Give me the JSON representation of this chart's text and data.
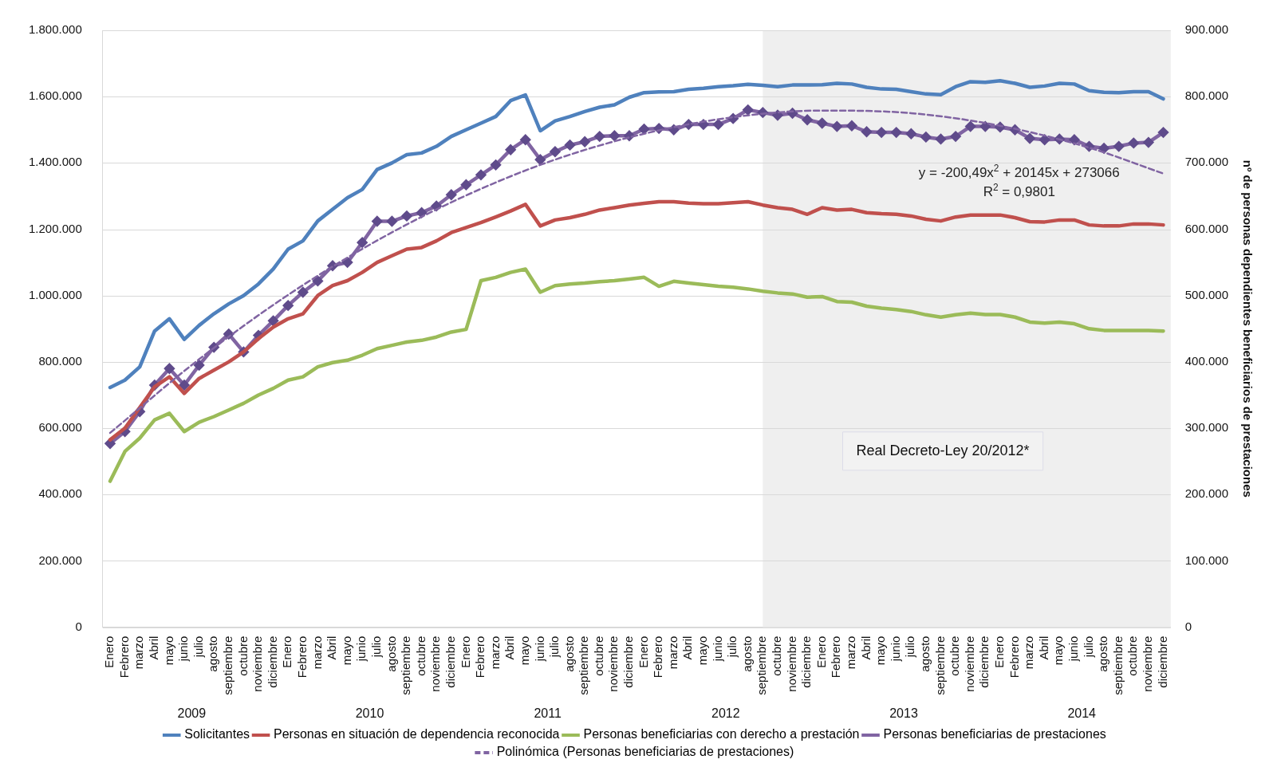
{
  "chart_data": {
    "type": "line",
    "x": [
      "2009-01",
      "2009-02",
      "2009-03",
      "2009-04",
      "2009-05",
      "2009-06",
      "2009-07",
      "2009-08",
      "2009-09",
      "2009-10",
      "2009-11",
      "2009-12",
      "2010-01",
      "2010-02",
      "2010-03",
      "2010-04",
      "2010-05",
      "2010-06",
      "2010-07",
      "2010-08",
      "2010-09",
      "2010-10",
      "2010-11",
      "2010-12",
      "2011-01",
      "2011-02",
      "2011-03",
      "2011-04",
      "2011-05",
      "2011-06",
      "2011-07",
      "2011-08",
      "2011-09",
      "2011-10",
      "2011-11",
      "2011-12",
      "2012-01",
      "2012-02",
      "2012-03",
      "2012-04",
      "2012-05",
      "2012-06",
      "2012-07",
      "2012-08",
      "2012-09",
      "2012-10",
      "2012-11",
      "2012-12",
      "2013-01",
      "2013-02",
      "2013-03",
      "2013-04",
      "2013-05",
      "2013-06",
      "2013-07",
      "2013-08",
      "2013-09",
      "2013-10",
      "2013-11",
      "2013-12",
      "2014-01",
      "2014-02",
      "2014-03",
      "2014-04",
      "2014-05",
      "2014-06",
      "2014-07",
      "2014-08",
      "2014-09",
      "2014-10",
      "2014-11",
      "2014-12"
    ],
    "xlim": [
      "2008-12-16",
      "2014-12-16"
    ],
    "xticks": [
      {
        "value": "2009-01",
        "label": "Enero"
      },
      {
        "value": "2009-02",
        "label": "Febrero"
      },
      {
        "value": "2009-03",
        "label": "marzo"
      },
      {
        "value": "2009-04",
        "label": "Abril"
      },
      {
        "value": "2009-05",
        "label": "mayo"
      },
      {
        "value": "2009-06",
        "label": "junio"
      },
      {
        "value": "2009-07",
        "label": "julio"
      },
      {
        "value": "2009-08",
        "label": "agosto"
      },
      {
        "value": "2009-09",
        "label": "septiembre"
      },
      {
        "value": "2009-10",
        "label": "octubre"
      },
      {
        "value": "2009-11",
        "label": "noviembre"
      },
      {
        "value": "2009-12",
        "label": "diciembre"
      },
      {
        "value": "2010-01",
        "label": "Enero"
      },
      {
        "value": "2010-02",
        "label": "Febrero"
      },
      {
        "value": "2010-03",
        "label": "marzo"
      },
      {
        "value": "2010-04",
        "label": "Abril"
      },
      {
        "value": "2010-05",
        "label": "mayo"
      },
      {
        "value": "2010-06",
        "label": "junio"
      },
      {
        "value": "2010-07",
        "label": "julio"
      },
      {
        "value": "2010-08",
        "label": "agosto"
      },
      {
        "value": "2010-09",
        "label": "septiembre"
      },
      {
        "value": "2010-10",
        "label": "octubre"
      },
      {
        "value": "2010-11",
        "label": "noviembre"
      },
      {
        "value": "2010-12",
        "label": "diciembre"
      },
      {
        "value": "2011-01",
        "label": "Enero"
      },
      {
        "value": "2011-02",
        "label": "Febrero"
      },
      {
        "value": "2011-03",
        "label": "marzo"
      },
      {
        "value": "2011-04",
        "label": "Abril"
      },
      {
        "value": "2011-05",
        "label": "mayo"
      },
      {
        "value": "2011-06",
        "label": "junio"
      },
      {
        "value": "2011-07",
        "label": "julio"
      },
      {
        "value": "2011-08",
        "label": "agosto"
      },
      {
        "value": "2011-09",
        "label": "septiembre"
      },
      {
        "value": "2011-10",
        "label": "octubre"
      },
      {
        "value": "2011-11",
        "label": "noviembre"
      },
      {
        "value": "2011-12",
        "label": "diciembre"
      },
      {
        "value": "2012-01",
        "label": "Enero"
      },
      {
        "value": "2012-02",
        "label": "Febrero"
      },
      {
        "value": "2012-03",
        "label": "marzo"
      },
      {
        "value": "2012-04",
        "label": "Abril"
      },
      {
        "value": "2012-05",
        "label": "mayo"
      },
      {
        "value": "2012-06",
        "label": "junio"
      },
      {
        "value": "2012-07",
        "label": "julio"
      },
      {
        "value": "2012-08",
        "label": "agosto"
      },
      {
        "value": "2012-09",
        "label": "septiembre"
      },
      {
        "value": "2012-10",
        "label": "octubre"
      },
      {
        "value": "2012-11",
        "label": "noviembre"
      },
      {
        "value": "2012-12",
        "label": "diciembre"
      },
      {
        "value": "2013-01",
        "label": "Enero"
      },
      {
        "value": "2013-02",
        "label": "Febrero"
      },
      {
        "value": "2013-03",
        "label": "marzo"
      },
      {
        "value": "2013-04",
        "label": "Abril"
      },
      {
        "value": "2013-05",
        "label": "mayo"
      },
      {
        "value": "2013-06",
        "label": "junio"
      },
      {
        "value": "2013-07",
        "label": "julio"
      },
      {
        "value": "2013-08",
        "label": "agosto"
      },
      {
        "value": "2013-09",
        "label": "septiembre"
      },
      {
        "value": "2013-10",
        "label": "octubre"
      },
      {
        "value": "2013-11",
        "label": "noviembre"
      },
      {
        "value": "2013-12",
        "label": "diciembre"
      },
      {
        "value": "2014-01",
        "label": "Enero"
      },
      {
        "value": "2014-02",
        "label": "Febrero"
      },
      {
        "value": "2014-03",
        "label": "marzo"
      },
      {
        "value": "2014-04",
        "label": "Abril"
      },
      {
        "value": "2014-05",
        "label": "mayo"
      },
      {
        "value": "2014-06",
        "label": "junio"
      },
      {
        "value": "2014-07",
        "label": "julio"
      },
      {
        "value": "2014-08",
        "label": "agosto"
      },
      {
        "value": "2014-09",
        "label": "septiembre"
      },
      {
        "value": "2014-10",
        "label": "octubre"
      },
      {
        "value": "2014-11",
        "label": "noviembre"
      },
      {
        "value": "2014-12",
        "label": "diciembre"
      }
    ],
    "x2lim": [
      "2008-12-16",
      "2014-12-16"
    ],
    "x2ticks": [
      {
        "value": "2009-06-16",
        "label": "2009"
      },
      {
        "value": "2010-06-16",
        "label": "2010"
      },
      {
        "value": "2011-06-16",
        "label": "2011"
      },
      {
        "value": "2012-06-16",
        "label": "2012"
      },
      {
        "value": "2013-06-16",
        "label": "2013"
      },
      {
        "value": "2014-06-16",
        "label": "2014"
      }
    ],
    "ylim": [
      0,
      1800000
    ],
    "yticks": [
      {
        "value": 0,
        "label": "0"
      },
      {
        "value": 200000,
        "label": "200.000"
      },
      {
        "value": 400000,
        "label": "400.000"
      },
      {
        "value": 600000,
        "label": "600.000"
      },
      {
        "value": 800000,
        "label": "800.000"
      },
      {
        "value": 1000000,
        "label": "1.000.000"
      },
      {
        "value": 1200000,
        "label": "1.200.000"
      },
      {
        "value": 1400000,
        "label": "1.400.000"
      },
      {
        "value": 1600000,
        "label": "1.600.000"
      },
      {
        "value": 1800000,
        "label": "1.800.000"
      }
    ],
    "y2lim": [
      0,
      900000
    ],
    "y2ticks": [
      {
        "value": 0,
        "label": "0"
      },
      {
        "value": 100000,
        "label": "100.000"
      },
      {
        "value": 200000,
        "label": "200.000"
      },
      {
        "value": 300000,
        "label": "300.000"
      },
      {
        "value": 400000,
        "label": "400.000"
      },
      {
        "value": 500000,
        "label": "500.000"
      },
      {
        "value": 600000,
        "label": "600.000"
      },
      {
        "value": 700000,
        "label": "700.000"
      },
      {
        "value": 800000,
        "label": "800.000"
      },
      {
        "value": 900000,
        "label": "900.000"
      }
    ],
    "y2label": "nº de personas dependientes beneficiarios de prestaciones",
    "grid": "y",
    "legend": "bottom",
    "series": [
      {
        "name": "Solicitantes",
        "color": "#4f81bd",
        "values": [
          723000,
          745000,
          785000,
          893000,
          930000,
          868000,
          910000,
          945000,
          975000,
          1000000,
          1035000,
          1080000,
          1140000,
          1165000,
          1225000,
          1260000,
          1295000,
          1320000,
          1380000,
          1400000,
          1425000,
          1430000,
          1450000,
          1480000,
          1500000,
          1520000,
          1540000,
          1588000,
          1605000,
          1497000,
          1527000,
          1540000,
          1555000,
          1568000,
          1575000,
          1598000,
          1612000,
          1614000,
          1615000,
          1622000,
          1625000,
          1630000,
          1633000,
          1637000,
          1634000,
          1630000,
          1635000,
          1635000,
          1636000,
          1640000,
          1638000,
          1628000,
          1623000,
          1622000,
          1615000,
          1608000,
          1606000,
          1630000,
          1645000,
          1643000,
          1648000,
          1640000,
          1628000,
          1632000,
          1640000,
          1638000,
          1618000,
          1613000,
          1612000,
          1615000,
          1615000,
          1593000
        ]
      },
      {
        "name": "Personas en situación de dependencia reconocida",
        "color": "#c0504d",
        "values": [
          565000,
          600000,
          null,
          725000,
          755000,
          705000,
          750000,
          775000,
          800000,
          830000,
          870000,
          905000,
          930000,
          945000,
          1000000,
          1030000,
          1045000,
          1070000,
          1100000,
          1120000,
          1140000,
          1145000,
          1165000,
          1190000,
          1205000,
          1220000,
          1237000,
          1255000,
          1275000,
          1210000,
          1228000,
          1235000,
          1245000,
          1258000,
          1265000,
          1273000,
          1278000,
          1283000,
          1283000,
          1279000,
          1277000,
          1277000,
          1280000,
          1283000,
          1273000,
          1265000,
          1260000,
          1245000,
          1265000,
          1258000,
          1260000,
          1250000,
          1247000,
          1245000,
          1240000,
          1230000,
          1225000,
          1237000,
          1243000,
          1243000,
          1243000,
          1235000,
          1223000,
          1222000,
          1228000,
          1228000,
          1213000,
          1210000,
          1210000,
          1216000,
          1216000,
          1213000
        ]
      },
      {
        "name": "Personas beneficiarias con derecho a prestación",
        "color": "#9bbb59",
        "values": [
          440000,
          530000,
          570000,
          625000,
          645000,
          590000,
          618000,
          635000,
          655000,
          675000,
          700000,
          720000,
          745000,
          755000,
          785000,
          798000,
          805000,
          820000,
          840000,
          850000,
          860000,
          865000,
          875000,
          890000,
          898000,
          1045000,
          1055000,
          1070000,
          1080000,
          1010000,
          1030000,
          1035000,
          1038000,
          1042000,
          1045000,
          1050000,
          1055000,
          1028000,
          1043000,
          1038000,
          1033000,
          1028000,
          1025000,
          1020000,
          1013000,
          1008000,
          1005000,
          995000,
          997000,
          982000,
          980000,
          968000,
          962000,
          958000,
          952000,
          942000,
          935000,
          942000,
          947000,
          943000,
          943000,
          935000,
          920000,
          917000,
          920000,
          915000,
          900000,
          895000,
          895000,
          895000,
          895000,
          893000
        ]
      },
      {
        "name": "Personas beneficiarias de prestaciones",
        "color": "#8064a2",
        "axis": "y2",
        "marker": "diamond",
        "values": [
          277000,
          295000,
          325000,
          365000,
          390000,
          365000,
          395000,
          422000,
          442000,
          415000,
          440000,
          462000,
          485000,
          505000,
          522000,
          545000,
          550000,
          580000,
          612000,
          612000,
          620000,
          625000,
          635000,
          652000,
          667000,
          682000,
          697000,
          720000,
          735000,
          705000,
          717000,
          727000,
          732000,
          740000,
          741000,
          741000,
          751000,
          752000,
          750000,
          758000,
          758000,
          758000,
          767000,
          780000,
          776000,
          772000,
          775000,
          765000,
          760000,
          755000,
          756000,
          747000,
          746000,
          746000,
          744000,
          739000,
          736000,
          740000,
          755000,
          755000,
          754000,
          750000,
          737000,
          735000,
          736000,
          735000,
          725000,
          722000,
          725000,
          730000,
          731000,
          746000
        ]
      },
      {
        "name": "Polinómica (Personas beneficiarias de prestaciones)",
        "color": "#8064a2",
        "axis": "y2",
        "line_style": "dashed",
        "x": [
          "2009-01",
          "2009-07",
          "2010-01",
          "2010-07",
          "2011-01",
          "2011-07",
          "2012-01",
          "2012-07",
          "2013-01",
          "2013-07",
          "2014-01",
          "2014-07",
          "2014-12"
        ],
        "values": [
          293000,
          404000,
          501000,
          583000,
          651000,
          705000,
          744000,
          769000,
          779000,
          775000,
          756000,
          723000,
          684000
        ]
      }
    ],
    "bands": [
      {
        "axis": "x",
        "from": "2012-09",
        "to": "2014-12-16",
        "label": "Real Decreto-Ley 20/2012*",
        "color": "#efefef"
      }
    ],
    "annotations": [
      "y = -200,49x$^{2}$ + 20145x + 273066",
      "R$^{2}$ = 0,9801"
    ]
  }
}
